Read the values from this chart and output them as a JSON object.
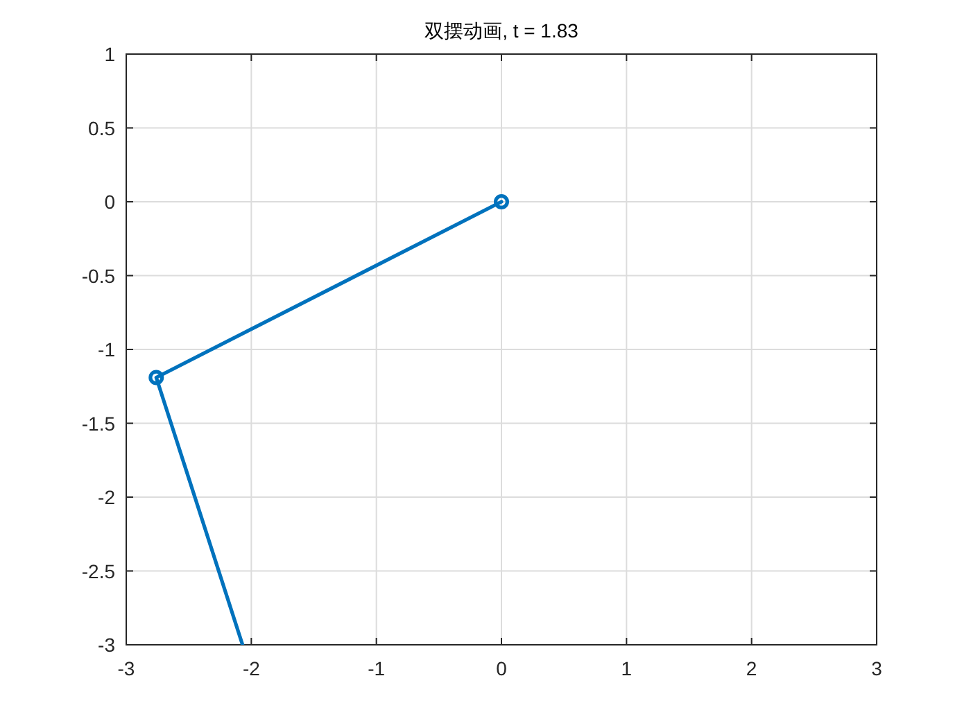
{
  "chart_data": {
    "type": "line",
    "title": "双摆动画, t = 1.83",
    "xlim": [
      -3,
      3
    ],
    "ylim": [
      -3,
      1
    ],
    "xticks": [
      -3,
      -2,
      -1,
      0,
      1,
      2,
      3
    ],
    "yticks": [
      -3,
      -2.5,
      -2,
      -1.5,
      -1,
      -0.5,
      0,
      0.5,
      1
    ],
    "grid": true,
    "series": [
      {
        "color": "#0072bd",
        "x": [
          0,
          -2.76,
          -2.07
        ],
        "values": [
          0,
          -1.19,
          -3
        ],
        "marker": "none",
        "line_style": "solid"
      },
      {
        "type": "scatter",
        "color": "#0072bd",
        "x": [
          0,
          -2.76
        ],
        "values": [
          0,
          -1.19
        ],
        "marker": "circle"
      }
    ]
  }
}
